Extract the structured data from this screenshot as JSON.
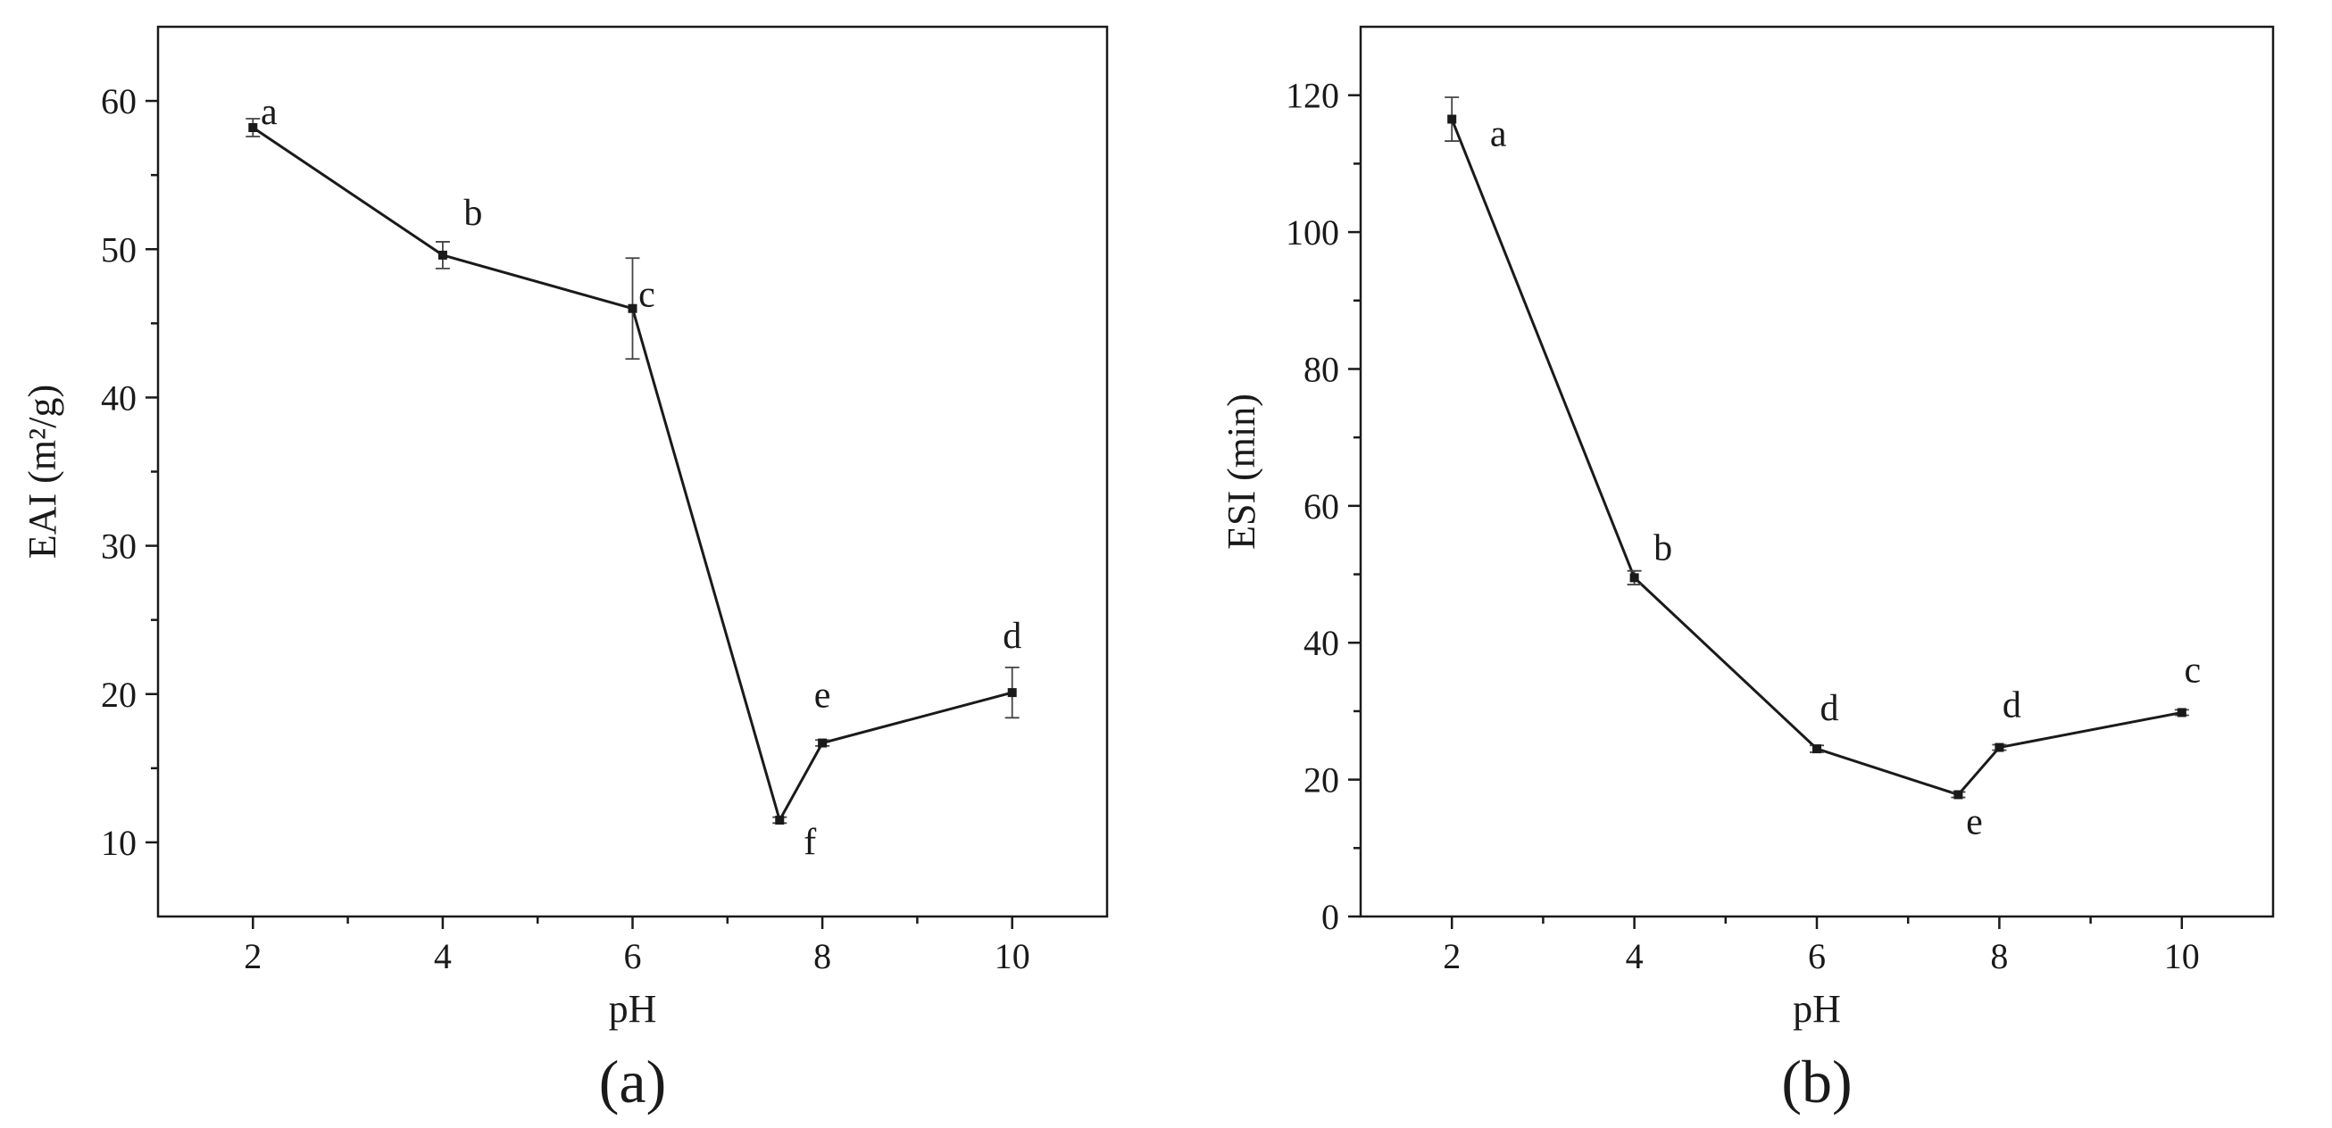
{
  "chart_data": [
    {
      "type": "line",
      "panel_label": "(a)",
      "xlabel": "pH",
      "ylabel": "EAI (m²/g)",
      "xlim": [
        1,
        11
      ],
      "ylim": [
        5,
        65
      ],
      "xticks": [
        2,
        4,
        6,
        8,
        10
      ],
      "yticks": [
        10,
        20,
        30,
        40,
        50,
        60
      ],
      "grid": false,
      "legend": "none",
      "line_color": "#1a1a1a",
      "points": [
        {
          "x": 2,
          "y": 58.2,
          "err": 0.6,
          "label": "a"
        },
        {
          "x": 4,
          "y": 49.6,
          "err": 0.9,
          "label": "b"
        },
        {
          "x": 6,
          "y": 46.0,
          "err": 3.4,
          "label": "c"
        },
        {
          "x": 7.55,
          "y": 11.5,
          "err": 0.2,
          "label": "f"
        },
        {
          "x": 8,
          "y": 16.7,
          "err": 0.2,
          "label": "e"
        },
        {
          "x": 10,
          "y": 20.1,
          "err": 1.7,
          "label": "d"
        }
      ]
    },
    {
      "type": "line",
      "panel_label": "(b)",
      "xlabel": "pH",
      "ylabel": "ESI (min)",
      "xlim": [
        1,
        11
      ],
      "ylim": [
        0,
        130
      ],
      "xticks": [
        2,
        4,
        6,
        8,
        10
      ],
      "yticks": [
        0,
        20,
        40,
        60,
        80,
        100,
        120
      ],
      "grid": false,
      "legend": "none",
      "line_color": "#1a1a1a",
      "points": [
        {
          "x": 2,
          "y": 116.5,
          "err": 3.2,
          "label": "a"
        },
        {
          "x": 4,
          "y": 49.5,
          "err": 1.0,
          "label": "b"
        },
        {
          "x": 6,
          "y": 24.5,
          "err": 0.5,
          "label": "d"
        },
        {
          "x": 7.55,
          "y": 17.8,
          "err": 0.4,
          "label": "e"
        },
        {
          "x": 8,
          "y": 24.7,
          "err": 0.4,
          "label": "d"
        },
        {
          "x": 10,
          "y": 29.8,
          "err": 0.4,
          "label": "c"
        }
      ]
    }
  ]
}
